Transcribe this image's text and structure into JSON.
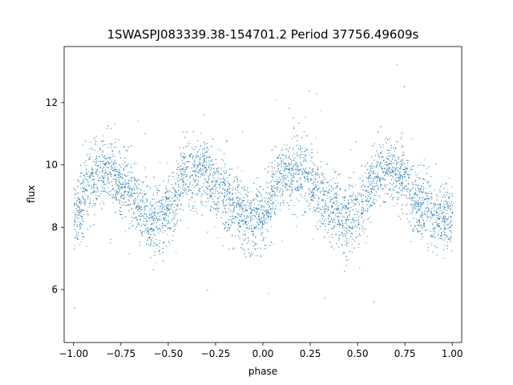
{
  "chart_data": {
    "type": "scatter",
    "title": "1SWASPJ083339.38-154701.2 Period 37756.49609s",
    "xlabel": "phase",
    "ylabel": "flux",
    "xlim": [
      -1.05,
      1.05
    ],
    "ylim": [
      4.3,
      13.8
    ],
    "xticks": [
      -1.0,
      -0.75,
      -0.5,
      -0.25,
      0.0,
      0.25,
      0.5,
      0.75,
      1.0
    ],
    "xtick_labels": [
      "−1.00",
      "−0.75",
      "−0.50",
      "−0.25",
      "0.00",
      "0.25",
      "0.50",
      "0.75",
      "1.00"
    ],
    "yticks": [
      6,
      8,
      10,
      12
    ],
    "ytick_labels": [
      "6",
      "8",
      "10",
      "12"
    ],
    "grid": false,
    "legend": "none",
    "marker_color": "#1f77b4",
    "series": [
      {
        "description_shape": "double-humped light curve folded twice",
        "x": [
          -1.0,
          -0.9,
          -0.825,
          -0.75,
          -0.65,
          -0.575,
          -0.5,
          -0.4,
          -0.325,
          -0.25,
          -0.15,
          -0.075,
          0.0,
          0.1,
          0.175,
          0.25,
          0.35,
          0.425,
          0.5,
          0.6,
          0.675,
          0.75,
          0.85,
          0.925,
          1.0
        ],
        "y": [
          8.4,
          9.5,
          9.9,
          9.5,
          8.7,
          8.2,
          8.6,
          9.7,
          9.9,
          9.4,
          8.6,
          8.2,
          8.5,
          9.6,
          9.9,
          9.5,
          8.7,
          8.2,
          8.6,
          9.7,
          9.9,
          9.4,
          8.6,
          8.2,
          8.4
        ]
      }
    ]
  }
}
